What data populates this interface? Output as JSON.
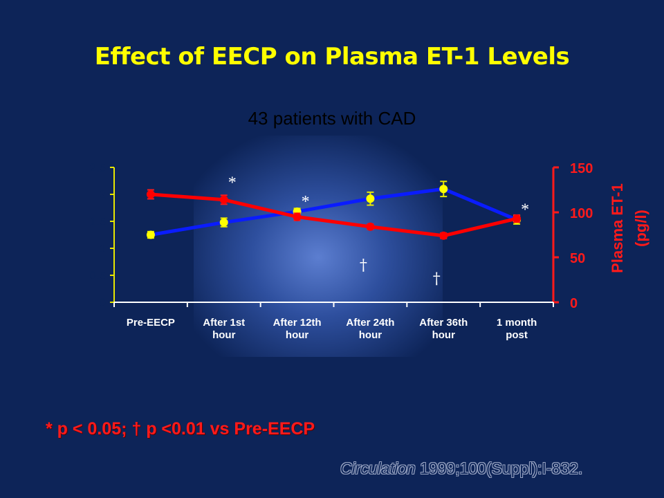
{
  "slide": {
    "title": "Effect of EECP on Plasma ET-1 Levels",
    "footnote": "* p < 0.05; † p <0.01 vs Pre-EECP",
    "citation_journal": "Circulation",
    "citation_rest": " 1999;100(Suppl):I-832."
  },
  "colors": {
    "background": "#0d2458",
    "title": "#ffff00",
    "et1_line": "#ff0000",
    "et1_marker": "#ff0000",
    "no_line": "#0a1cff",
    "no_marker": "#ffff00",
    "left_axis": "#e8e800",
    "right_axis": "#ff1a1a"
  },
  "chart_data": {
    "type": "line",
    "title": "43 patients with CAD",
    "categories": [
      "Pre-EECP",
      "After 1st hour",
      "After 12th hour",
      "After 24th hour",
      "After 36th hour",
      "1 month post"
    ],
    "left_axis": {
      "label": "",
      "ticks": [
        "0",
        "0.5",
        "1",
        "1.5",
        "2",
        "2.5"
      ],
      "ylim": [
        0,
        2.5
      ]
    },
    "right_axis": {
      "label": "Plasma ET-1 (pg/l)",
      "ticks": [
        "0",
        "50",
        "100",
        "150"
      ],
      "ylim": [
        0,
        150
      ]
    },
    "series": [
      {
        "axis": "left",
        "color": "#0a1cff",
        "marker_color": "#ffff00",
        "values": [
          1.25,
          1.48,
          1.68,
          1.92,
          2.1,
          1.53
        ],
        "errors": [
          0.06,
          0.08,
          0.06,
          0.12,
          0.14,
          0.08
        ]
      },
      {
        "name": "Plasma ET-1",
        "axis": "right",
        "color": "#ff0000",
        "marker_color": "#ff0000",
        "values": [
          120,
          114,
          95,
          84,
          74,
          93
        ],
        "errors": [
          5,
          5,
          4,
          3,
          3,
          4
        ]
      }
    ],
    "annotations": [
      {
        "text": "*",
        "category": 1,
        "axis": "left",
        "y": 2.3
      },
      {
        "text": "*",
        "category": 2,
        "axis": "left",
        "y": 1.95
      },
      {
        "text": "*",
        "category": 5,
        "axis": "left",
        "y": 1.8
      },
      {
        "text": "†",
        "category": 3,
        "axis": "left",
        "y": 0.7
      },
      {
        "text": "†",
        "category": 4,
        "axis": "left",
        "y": 0.45
      }
    ],
    "grid": false,
    "legend": "none"
  }
}
